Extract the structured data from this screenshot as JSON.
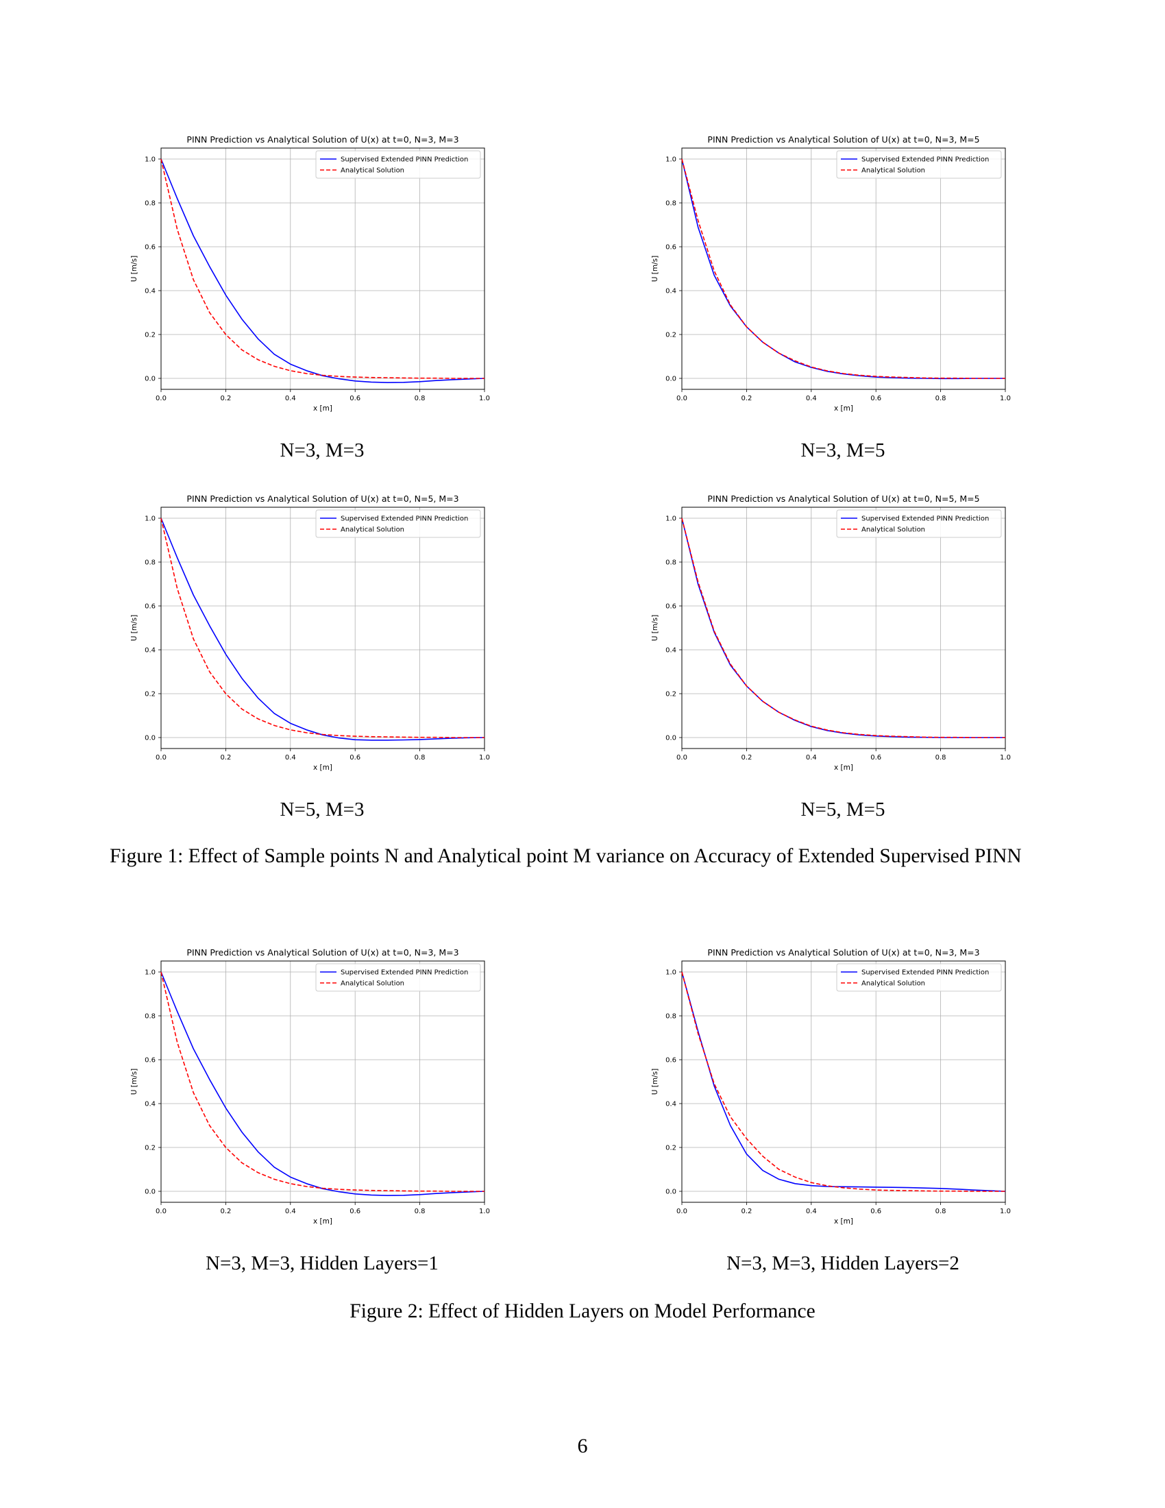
{
  "page_number": "6",
  "figures": [
    {
      "caption_label": "Figure 1:",
      "caption_text": "Effect of Sample points N and Analytical point M variance on Accuracy of Extended Supervised PINN",
      "subfigures": [
        {
          "caption": "N=3, M=3"
        },
        {
          "caption": "N=3, M=5"
        },
        {
          "caption": "N=5, M=3"
        },
        {
          "caption": "N=5, M=5"
        }
      ]
    },
    {
      "caption_label": "Figure 2:",
      "caption_text": "Effect of Hidden Layers on Model Performance",
      "subfigures": [
        {
          "caption": "N=3, M=3, Hidden Layers=1"
        },
        {
          "caption": "N=3, M=3, Hidden Layers=2"
        }
      ]
    }
  ],
  "chart_data": [
    {
      "type": "line",
      "title": "PINN Prediction vs Analytical Solution of U(x) at t=0, N=3, M=3",
      "xlabel": "x [m]",
      "ylabel": "U [m/s]",
      "xlim": [
        0.0,
        1.0
      ],
      "ylim": [
        -0.05,
        1.05
      ],
      "xticks": [
        "0.0",
        "0.2",
        "0.4",
        "0.6",
        "0.8",
        "1.0"
      ],
      "yticks": [
        "0.0",
        "0.2",
        "0.4",
        "0.6",
        "0.8",
        "1.0"
      ],
      "grid": true,
      "legend": "top-right",
      "x": [
        0,
        0.05,
        0.1,
        0.15,
        0.2,
        0.25,
        0.3,
        0.35,
        0.4,
        0.45,
        0.5,
        0.55,
        0.6,
        0.65,
        0.7,
        0.75,
        0.8,
        0.85,
        0.9,
        0.95,
        1.0
      ],
      "series": [
        {
          "name": "Supervised Extended PINN Prediction",
          "color": "#0000ff",
          "style": "solid",
          "values": [
            1.0,
            0.82,
            0.65,
            0.51,
            0.38,
            0.27,
            0.18,
            0.11,
            0.065,
            0.035,
            0.012,
            -0.002,
            -0.012,
            -0.017,
            -0.019,
            -0.018,
            -0.015,
            -0.01,
            -0.006,
            -0.003,
            0.0
          ]
        },
        {
          "name": "Analytical Solution",
          "color": "#ff0000",
          "style": "dashed",
          "values": [
            1.0,
            0.68,
            0.45,
            0.3,
            0.2,
            0.13,
            0.085,
            0.055,
            0.035,
            0.022,
            0.014,
            0.009,
            0.006,
            0.004,
            0.003,
            0.002,
            0.001,
            0.001,
            0.0,
            0.0,
            0.0
          ]
        }
      ]
    },
    {
      "type": "line",
      "title": "PINN Prediction vs Analytical Solution of U(x) at t=0, N=3, M=5",
      "xlabel": "x [m]",
      "ylabel": "U [m/s]",
      "xlim": [
        0.0,
        1.0
      ],
      "ylim": [
        -0.05,
        1.05
      ],
      "xticks": [
        "0.0",
        "0.2",
        "0.4",
        "0.6",
        "0.8",
        "1.0"
      ],
      "yticks": [
        "0.0",
        "0.2",
        "0.4",
        "0.6",
        "0.8",
        "1.0"
      ],
      "grid": true,
      "legend": "top-right",
      "x": [
        0,
        0.05,
        0.1,
        0.15,
        0.2,
        0.25,
        0.3,
        0.35,
        0.4,
        0.45,
        0.5,
        0.55,
        0.6,
        0.65,
        0.7,
        0.75,
        0.8,
        0.85,
        0.9,
        0.95,
        1.0
      ],
      "series": [
        {
          "name": "Supervised Extended PINN Prediction",
          "color": "#0000ff",
          "style": "solid",
          "values": [
            1.0,
            0.69,
            0.47,
            0.33,
            0.235,
            0.165,
            0.115,
            0.075,
            0.05,
            0.032,
            0.02,
            0.012,
            0.006,
            0.003,
            0.001,
            0.0,
            -0.001,
            -0.001,
            0.0,
            0.0,
            0.0
          ]
        },
        {
          "name": "Analytical Solution",
          "color": "#ff0000",
          "style": "dashed",
          "values": [
            1.0,
            0.72,
            0.49,
            0.335,
            0.235,
            0.165,
            0.115,
            0.08,
            0.052,
            0.034,
            0.022,
            0.014,
            0.009,
            0.006,
            0.004,
            0.002,
            0.001,
            0.001,
            0.0,
            0.0,
            0.0
          ]
        }
      ]
    },
    {
      "type": "line",
      "title": "PINN Prediction vs Analytical Solution of U(x) at t=0, N=5, M=3",
      "xlabel": "x [m]",
      "ylabel": "U [m/s]",
      "xlim": [
        0.0,
        1.0
      ],
      "ylim": [
        -0.05,
        1.05
      ],
      "xticks": [
        "0.0",
        "0.2",
        "0.4",
        "0.6",
        "0.8",
        "1.0"
      ],
      "yticks": [
        "0.0",
        "0.2",
        "0.4",
        "0.6",
        "0.8",
        "1.0"
      ],
      "grid": true,
      "legend": "top-right",
      "x": [
        0,
        0.05,
        0.1,
        0.15,
        0.2,
        0.25,
        0.3,
        0.35,
        0.4,
        0.45,
        0.5,
        0.55,
        0.6,
        0.65,
        0.7,
        0.75,
        0.8,
        0.85,
        0.9,
        0.95,
        1.0
      ],
      "series": [
        {
          "name": "Supervised Extended PINN Prediction",
          "color": "#0000ff",
          "style": "solid",
          "values": [
            1.0,
            0.82,
            0.65,
            0.51,
            0.38,
            0.27,
            0.18,
            0.11,
            0.065,
            0.035,
            0.012,
            -0.002,
            -0.01,
            -0.012,
            -0.012,
            -0.011,
            -0.009,
            -0.006,
            -0.003,
            -0.001,
            0.0
          ]
        },
        {
          "name": "Analytical Solution",
          "color": "#ff0000",
          "style": "dashed",
          "values": [
            1.0,
            0.68,
            0.45,
            0.3,
            0.2,
            0.13,
            0.085,
            0.055,
            0.035,
            0.022,
            0.014,
            0.009,
            0.006,
            0.004,
            0.003,
            0.002,
            0.001,
            0.001,
            0.0,
            0.0,
            0.0
          ]
        }
      ]
    },
    {
      "type": "line",
      "title": "PINN Prediction vs Analytical Solution of U(x) at t=0, N=5, M=5",
      "xlabel": "x [m]",
      "ylabel": "U [m/s]",
      "xlim": [
        0.0,
        1.0
      ],
      "ylim": [
        -0.05,
        1.05
      ],
      "xticks": [
        "0.0",
        "0.2",
        "0.4",
        "0.6",
        "0.8",
        "1.0"
      ],
      "yticks": [
        "0.0",
        "0.2",
        "0.4",
        "0.6",
        "0.8",
        "1.0"
      ],
      "grid": true,
      "legend": "top-right",
      "x": [
        0,
        0.05,
        0.1,
        0.15,
        0.2,
        0.25,
        0.3,
        0.35,
        0.4,
        0.45,
        0.5,
        0.55,
        0.6,
        0.65,
        0.7,
        0.75,
        0.8,
        0.85,
        0.9,
        0.95,
        1.0
      ],
      "series": [
        {
          "name": "Supervised Extended PINN Prediction",
          "color": "#0000ff",
          "style": "solid",
          "values": [
            1.0,
            0.7,
            0.48,
            0.33,
            0.235,
            0.165,
            0.115,
            0.078,
            0.05,
            0.032,
            0.02,
            0.012,
            0.007,
            0.004,
            0.002,
            0.001,
            0.0,
            0.0,
            0.0,
            0.0,
            0.0
          ]
        },
        {
          "name": "Analytical Solution",
          "color": "#ff0000",
          "style": "dashed",
          "values": [
            1.0,
            0.71,
            0.485,
            0.335,
            0.235,
            0.165,
            0.115,
            0.08,
            0.052,
            0.034,
            0.022,
            0.014,
            0.009,
            0.006,
            0.004,
            0.002,
            0.001,
            0.001,
            0.0,
            0.0,
            0.0
          ]
        }
      ]
    },
    {
      "type": "line",
      "title": "PINN Prediction vs Analytical Solution of U(x) at t=0, N=3, M=3",
      "xlabel": "x [m]",
      "ylabel": "U [m/s]",
      "xlim": [
        0.0,
        1.0
      ],
      "ylim": [
        -0.05,
        1.05
      ],
      "xticks": [
        "0.0",
        "0.2",
        "0.4",
        "0.6",
        "0.8",
        "1.0"
      ],
      "yticks": [
        "0.0",
        "0.2",
        "0.4",
        "0.6",
        "0.8",
        "1.0"
      ],
      "grid": true,
      "legend": "top-right",
      "x": [
        0,
        0.05,
        0.1,
        0.15,
        0.2,
        0.25,
        0.3,
        0.35,
        0.4,
        0.45,
        0.5,
        0.55,
        0.6,
        0.65,
        0.7,
        0.75,
        0.8,
        0.85,
        0.9,
        0.95,
        1.0
      ],
      "series": [
        {
          "name": "Supervised Extended PINN Prediction",
          "color": "#0000ff",
          "style": "solid",
          "values": [
            1.0,
            0.82,
            0.65,
            0.51,
            0.38,
            0.27,
            0.18,
            0.11,
            0.065,
            0.035,
            0.012,
            -0.002,
            -0.012,
            -0.017,
            -0.019,
            -0.018,
            -0.015,
            -0.01,
            -0.006,
            -0.003,
            0.0
          ]
        },
        {
          "name": "Analytical Solution",
          "color": "#ff0000",
          "style": "dashed",
          "values": [
            1.0,
            0.68,
            0.45,
            0.3,
            0.2,
            0.13,
            0.085,
            0.055,
            0.035,
            0.022,
            0.014,
            0.009,
            0.006,
            0.004,
            0.003,
            0.002,
            0.001,
            0.001,
            0.0,
            0.0,
            0.0
          ]
        }
      ]
    },
    {
      "type": "line",
      "title": "PINN Prediction vs Analytical Solution of U(x) at t=0, N=3, M=3",
      "xlabel": "x [m]",
      "ylabel": "U [m/s]",
      "xlim": [
        0.0,
        1.0
      ],
      "ylim": [
        -0.05,
        1.05
      ],
      "xticks": [
        "0.0",
        "0.2",
        "0.4",
        "0.6",
        "0.8",
        "1.0"
      ],
      "yticks": [
        "0.0",
        "0.2",
        "0.4",
        "0.6",
        "0.8",
        "1.0"
      ],
      "grid": true,
      "legend": "top-right",
      "x": [
        0,
        0.05,
        0.1,
        0.15,
        0.2,
        0.25,
        0.3,
        0.35,
        0.4,
        0.45,
        0.5,
        0.55,
        0.6,
        0.65,
        0.7,
        0.75,
        0.8,
        0.85,
        0.9,
        0.95,
        1.0
      ],
      "series": [
        {
          "name": "Supervised Extended PINN Prediction",
          "color": "#0000ff",
          "style": "solid",
          "values": [
            1.0,
            0.73,
            0.48,
            0.3,
            0.17,
            0.095,
            0.055,
            0.035,
            0.026,
            0.022,
            0.021,
            0.02,
            0.019,
            0.018,
            0.017,
            0.015,
            0.013,
            0.01,
            0.006,
            0.003,
            0.0
          ]
        },
        {
          "name": "Analytical Solution",
          "color": "#ff0000",
          "style": "dashed",
          "values": [
            1.0,
            0.72,
            0.49,
            0.34,
            0.24,
            0.16,
            0.1,
            0.065,
            0.04,
            0.025,
            0.016,
            0.01,
            0.006,
            0.004,
            0.003,
            0.002,
            0.001,
            0.001,
            0.0,
            0.0,
            0.0
          ]
        }
      ]
    }
  ]
}
